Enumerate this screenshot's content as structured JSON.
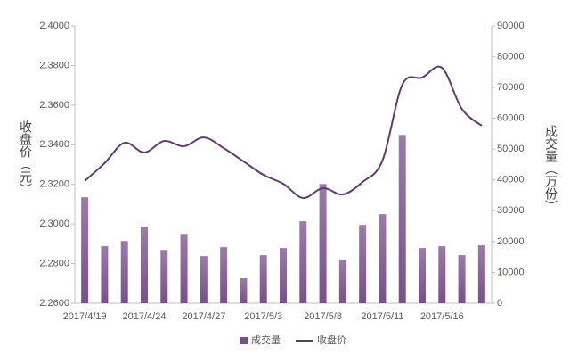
{
  "chart_data": {
    "type": "bar-line",
    "categories": [
      "2017/4/19",
      null,
      null,
      "2017/4/24",
      null,
      null,
      "2017/4/27",
      null,
      null,
      "2017/5/3",
      null,
      null,
      "2017/5/8",
      null,
      null,
      "2017/5/11",
      null,
      null,
      "2017/5/16",
      null,
      null
    ],
    "series": [
      {
        "name": "成交量",
        "type": "bar",
        "axis": "y2",
        "color": "#7a4f8c",
        "values": [
          34400,
          18500,
          20200,
          24600,
          17300,
          22500,
          15300,
          18200,
          8100,
          15600,
          17900,
          26600,
          38700,
          14200,
          25400,
          28900,
          54600,
          17900,
          18500,
          15600,
          18800
        ]
      },
      {
        "name": "收盘价",
        "type": "line",
        "axis": "y",
        "color": "#5e3b70",
        "values": [
          2.3217,
          2.3307,
          2.341,
          2.3361,
          2.3419,
          2.3392,
          2.3437,
          2.3383,
          2.3316,
          2.3248,
          2.3203,
          2.3131,
          2.3181,
          2.3149,
          2.3212,
          2.332,
          2.3703,
          2.3739,
          2.3788,
          2.3581,
          2.3496
        ]
      }
    ],
    "ylabel": "收盘价（元）",
    "y2label": "成交量（万份）",
    "ylim": [
      2.26,
      2.4
    ],
    "yticks": [
      {
        "value": 2.26,
        "label": "2.2600"
      },
      {
        "value": 2.28,
        "label": "2.2800"
      },
      {
        "value": 2.3,
        "label": "2.3000"
      },
      {
        "value": 2.32,
        "label": "2.3200"
      },
      {
        "value": 2.34,
        "label": "2.3400"
      },
      {
        "value": 2.36,
        "label": "2.3600"
      },
      {
        "value": 2.38,
        "label": "2.3800"
      },
      {
        "value": 2.4,
        "label": "2.4000"
      }
    ],
    "y2lim": [
      0,
      90000
    ],
    "y2ticks": [
      0,
      10000,
      20000,
      30000,
      40000,
      50000,
      60000,
      70000,
      80000,
      90000
    ],
    "legend": "bottom"
  }
}
